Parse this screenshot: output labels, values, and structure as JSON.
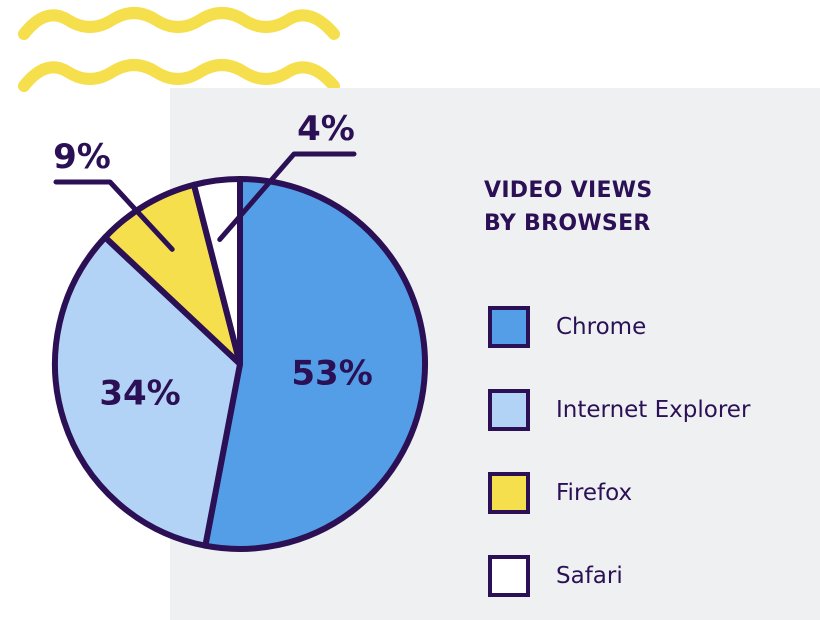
{
  "colors": {
    "ink": "#2b1055",
    "panel": "#eff0f1",
    "wave": "#f5df4d",
    "background": "#ffffff"
  },
  "chart_data": {
    "type": "pie",
    "title": "VIDEO VIEWS BY BROWSER",
    "title_lines": [
      "VIDEO VIEWS",
      "BY BROWSER"
    ],
    "legend_position": "right",
    "slices": [
      {
        "label": "Chrome",
        "value": 53,
        "display": "53%",
        "color": "#539ee6"
      },
      {
        "label": "Internet Explorer",
        "value": 34,
        "display": "34%",
        "color": "#b2d3f5"
      },
      {
        "label": "Firefox",
        "value": 9,
        "display": "9%",
        "color": "#f5df4d"
      },
      {
        "label": "Safari",
        "value": 4,
        "display": "4%",
        "color": "#ffffff"
      }
    ]
  }
}
